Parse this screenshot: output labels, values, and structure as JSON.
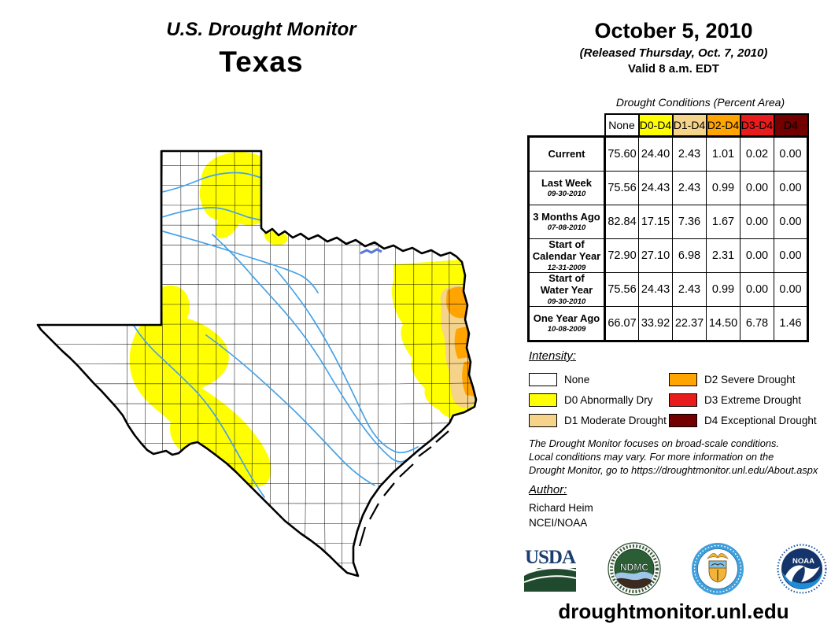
{
  "page": {
    "title_line1": "U.S. Drought Monitor",
    "title_line2": "Texas"
  },
  "header": {
    "date": "October 5, 2010",
    "released": "(Released Thursday, Oct. 7, 2010)",
    "valid": "Valid 8 a.m. EDT"
  },
  "table": {
    "caption": "Drought Conditions (Percent Area)",
    "columns": [
      {
        "label": "None",
        "bg": "#FFFFFF"
      },
      {
        "label": "D0-D4",
        "bg": "#FFFF00"
      },
      {
        "label": "D1-D4",
        "bg": "#F5D38B"
      },
      {
        "label": "D2-D4",
        "bg": "#FFA400"
      },
      {
        "label": "D3-D4",
        "bg": "#E81C1C"
      },
      {
        "label": "D4",
        "bg": "#730000"
      }
    ],
    "rows": [
      {
        "label1": "Current",
        "label2": "",
        "date": "",
        "values": [
          "75.60",
          "24.40",
          "2.43",
          "1.01",
          "0.02",
          "0.00"
        ]
      },
      {
        "label1": "Last Week",
        "label2": "",
        "date": "09-30-2010",
        "values": [
          "75.56",
          "24.43",
          "2.43",
          "0.99",
          "0.00",
          "0.00"
        ]
      },
      {
        "label1": "3 Months Ago",
        "label2": "",
        "date": "07-08-2010",
        "values": [
          "82.84",
          "17.15",
          "7.36",
          "1.67",
          "0.00",
          "0.00"
        ]
      },
      {
        "label1": "Start of",
        "label2": "Calendar Year",
        "date": "12-31-2009",
        "values": [
          "72.90",
          "27.10",
          "6.98",
          "2.31",
          "0.00",
          "0.00"
        ]
      },
      {
        "label1": "Start of",
        "label2": "Water Year",
        "date": "09-30-2010",
        "values": [
          "75.56",
          "24.43",
          "2.43",
          "0.99",
          "0.00",
          "0.00"
        ]
      },
      {
        "label1": "One Year Ago",
        "label2": "",
        "date": "10-08-2009",
        "values": [
          "66.07",
          "33.92",
          "22.37",
          "14.50",
          "6.78",
          "1.46"
        ]
      }
    ]
  },
  "chart_data": {
    "type": "table",
    "title": "Drought Conditions (Percent Area)",
    "categories": [
      "None",
      "D0-D4",
      "D1-D4",
      "D2-D4",
      "D3-D4",
      "D4"
    ],
    "series": [
      {
        "name": "Current",
        "values": [
          75.6,
          24.4,
          2.43,
          1.01,
          0.02,
          0.0
        ]
      },
      {
        "name": "Last Week 09-30-2010",
        "values": [
          75.56,
          24.43,
          2.43,
          0.99,
          0.0,
          0.0
        ]
      },
      {
        "name": "3 Months Ago 07-08-2010",
        "values": [
          82.84,
          17.15,
          7.36,
          1.67,
          0.0,
          0.0
        ]
      },
      {
        "name": "Start of Calendar Year 12-31-2009",
        "values": [
          72.9,
          27.1,
          6.98,
          2.31,
          0.0,
          0.0
        ]
      },
      {
        "name": "Start of Water Year 09-30-2010",
        "values": [
          75.56,
          24.43,
          2.43,
          0.99,
          0.0,
          0.0
        ]
      },
      {
        "name": "One Year Ago 10-08-2009",
        "values": [
          66.07,
          33.92,
          22.37,
          14.5,
          6.78,
          1.46
        ]
      }
    ]
  },
  "legend": {
    "title": "Intensity:",
    "items": [
      {
        "label": "None",
        "color": "#FFFFFF"
      },
      {
        "label": "D0 Abnormally Dry",
        "color": "#FFFF00"
      },
      {
        "label": "D1 Moderate Drought",
        "color": "#F5D38B"
      },
      {
        "label": "D2 Severe Drought",
        "color": "#FFA400"
      },
      {
        "label": "D3 Extreme Drought",
        "color": "#E81C1C"
      },
      {
        "label": "D4 Exceptional Drought",
        "color": "#730000"
      }
    ]
  },
  "notes": {
    "lines": [
      "The Drought Monitor focuses on broad-scale conditions.",
      "Local conditions may vary. For more information on the",
      "Drought Monitor, go to https://droughtmonitor.unl.edu/About.aspx"
    ]
  },
  "author": {
    "title": "Author:",
    "name": "Richard Heim",
    "org": "NCEI/NOAA"
  },
  "logos": {
    "usda": "USDA",
    "ndmc": "NDMC",
    "noaa": "NOAA"
  },
  "footer": {
    "website": "droughtmonitor.unl.edu"
  },
  "map": {
    "state": "Texas",
    "colors": {
      "none": "#FFFFFF",
      "d0": "#FFFF00",
      "d1": "#F5D38B",
      "d2": "#FFA400",
      "d3": "#E81C1C",
      "river": "#47A3E8",
      "border": "#000000"
    }
  }
}
